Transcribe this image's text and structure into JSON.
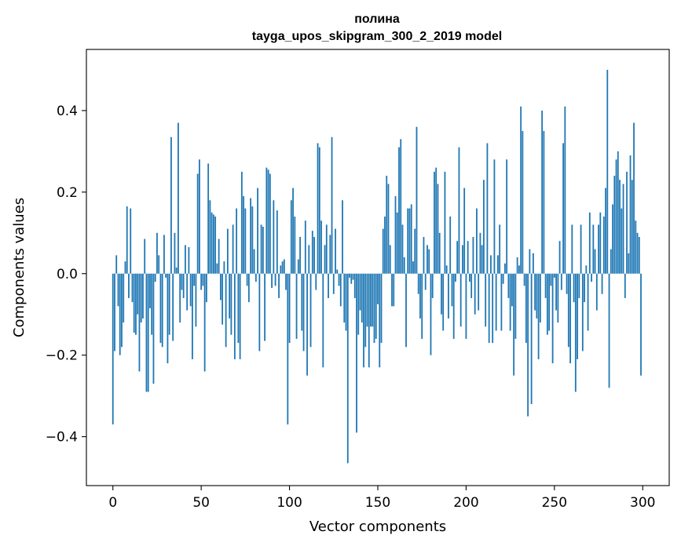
{
  "chart_data": {
    "type": "bar",
    "title": "полина",
    "subtitle": "tayga_upos_skipgram_300_2_2019 model",
    "xlabel": "Vector components",
    "ylabel": "Components values",
    "xlim": [
      -15,
      315
    ],
    "ylim": [
      -0.52,
      0.55
    ],
    "xticks": [
      0,
      50,
      100,
      150,
      200,
      250,
      300
    ],
    "xtick_labels": [
      "0",
      "50",
      "100",
      "150",
      "200",
      "250",
      "300"
    ],
    "yticks": [
      -0.4,
      -0.2,
      0.0,
      0.2,
      0.4
    ],
    "ytick_labels": [
      "−0.4",
      "−0.2",
      "0.0",
      "0.2",
      "0.4"
    ],
    "bar_color": "#1f77b4",
    "grid": false,
    "values": [
      -0.37,
      -0.19,
      0.045,
      -0.08,
      -0.2,
      -0.18,
      -0.12,
      0.03,
      0.165,
      -0.06,
      0.16,
      -0.07,
      -0.145,
      -0.15,
      -0.1,
      -0.24,
      -0.12,
      -0.11,
      0.085,
      -0.29,
      -0.29,
      -0.085,
      -0.15,
      -0.27,
      -0.02,
      0.1,
      0.045,
      -0.17,
      -0.18,
      0.095,
      -0.01,
      -0.22,
      -0.15,
      0.335,
      -0.165,
      0.1,
      0.015,
      0.37,
      -0.12,
      -0.04,
      -0.06,
      0.07,
      -0.09,
      0.065,
      -0.08,
      -0.21,
      -0.03,
      -0.13,
      0.245,
      0.28,
      -0.04,
      -0.03,
      -0.24,
      -0.07,
      0.27,
      0.18,
      0.15,
      0.145,
      0.14,
      0.025,
      0.085,
      -0.065,
      -0.125,
      0.03,
      -0.18,
      0.11,
      -0.11,
      -0.15,
      0.12,
      -0.21,
      0.16,
      -0.17,
      -0.21,
      0.25,
      0.19,
      0.16,
      -0.03,
      -0.07,
      0.185,
      0.165,
      0.06,
      -0.02,
      0.21,
      -0.19,
      0.12,
      0.115,
      -0.165,
      0.26,
      0.255,
      0.245,
      -0.035,
      0.18,
      -0.03,
      0.155,
      -0.06,
      0.02,
      0.03,
      0.035,
      -0.04,
      -0.37,
      -0.17,
      0.18,
      0.21,
      0.14,
      -0.16,
      0.035,
      0.09,
      -0.14,
      -0.19,
      0.13,
      -0.25,
      0.07,
      -0.18,
      0.105,
      0.09,
      -0.04,
      0.32,
      0.31,
      0.13,
      -0.23,
      0.07,
      0.12,
      -0.06,
      0.095,
      0.335,
      -0.05,
      0.11,
      0.01,
      -0.03,
      -0.08,
      0.18,
      -0.12,
      -0.14,
      -0.465,
      -0.01,
      -0.025,
      -0.015,
      -0.06,
      -0.39,
      -0.15,
      -0.09,
      -0.12,
      -0.23,
      -0.18,
      -0.13,
      -0.23,
      -0.13,
      -0.13,
      -0.17,
      -0.16,
      -0.075,
      -0.23,
      -0.17,
      0.11,
      0.14,
      0.24,
      0.22,
      0.07,
      -0.08,
      -0.08,
      0.19,
      0.15,
      0.31,
      0.33,
      0.12,
      0.04,
      -0.18,
      0.16,
      0.16,
      0.17,
      0.03,
      0.11,
      0.36,
      -0.05,
      -0.11,
      -0.16,
      0.09,
      -0.04,
      0.07,
      0.06,
      -0.2,
      -0.06,
      0.25,
      0.26,
      0.22,
      0.1,
      -0.1,
      -0.14,
      0.25,
      0.02,
      -0.11,
      0.14,
      -0.08,
      -0.16,
      -0.02,
      0.08,
      0.31,
      -0.13,
      0.07,
      0.21,
      -0.16,
      0.08,
      -0.02,
      -0.06,
      0.09,
      -0.1,
      0.16,
      -0.09,
      0.1,
      0.07,
      0.23,
      -0.13,
      0.32,
      -0.17,
      0.045,
      -0.17,
      0.28,
      -0.14,
      0.045,
      0.12,
      -0.14,
      -0.025,
      0.025,
      0.28,
      -0.06,
      -0.14,
      -0.08,
      -0.25,
      -0.16,
      0.04,
      0.02,
      0.41,
      0.35,
      -0.03,
      -0.17,
      -0.35,
      0.06,
      -0.32,
      0.05,
      -0.09,
      -0.11,
      -0.21,
      -0.12,
      0.4,
      0.35,
      -0.06,
      -0.15,
      -0.14,
      -0.03,
      -0.22,
      -0.01,
      -0.09,
      -0.12,
      0.08,
      -0.04,
      0.32,
      0.41,
      -0.05,
      -0.18,
      -0.22,
      0.12,
      -0.07,
      -0.29,
      -0.21,
      -0.06,
      0.12,
      -0.19,
      -0.07,
      0.02,
      -0.14,
      0.15,
      -0.02,
      0.12,
      0.06,
      -0.09,
      0.12,
      0.15,
      -0.05,
      0.14,
      0.21,
      0.5,
      -0.28,
      0.06,
      0.17,
      0.24,
      0.28,
      0.3,
      0.23,
      0.16,
      0.22,
      -0.06,
      0.25,
      0.05,
      0.29,
      0.23,
      0.37,
      0.13,
      0.1,
      0.09,
      -0.25
    ]
  }
}
